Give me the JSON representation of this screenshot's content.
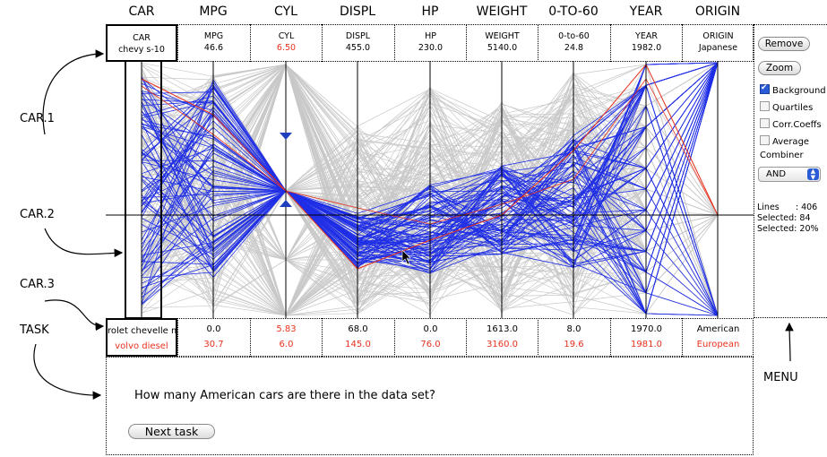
{
  "axes": [
    {
      "header": "CAR",
      "top_name": "CAR",
      "top_value": "chevy s-10",
      "bottom_min": "rolet chevelle m",
      "bottom_max": "volvo diesel"
    },
    {
      "header": "MPG",
      "top_name": "MPG",
      "top_value": "46.6",
      "bottom_min": "0.0",
      "bottom_max": "30.7"
    },
    {
      "header": "CYL",
      "top_name": "CYL",
      "top_value": "6.50",
      "bottom_min": "5.83",
      "bottom_max": "6.0"
    },
    {
      "header": "DISPL",
      "top_name": "DISPL",
      "top_value": "455.0",
      "bottom_min": "68.0",
      "bottom_max": "145.0"
    },
    {
      "header": "HP",
      "top_name": "HP",
      "top_value": "230.0",
      "bottom_min": "0.0",
      "bottom_max": "76.0"
    },
    {
      "header": "WEIGHT",
      "top_name": "WEIGHT",
      "top_value": "5140.0",
      "bottom_min": "1613.0",
      "bottom_max": "3160.0"
    },
    {
      "header": "0-TO-60",
      "top_name": "0-to-60",
      "top_value": "24.8",
      "bottom_min": "8.0",
      "bottom_max": "19.6"
    },
    {
      "header": "YEAR",
      "top_name": "YEAR",
      "top_value": "1982.0",
      "bottom_min": "1970.0",
      "bottom_max": "1981.0"
    },
    {
      "header": "ORIGIN",
      "top_name": "ORIGIN",
      "top_value": "Japanese",
      "bottom_min": "American",
      "bottom_max": "European"
    }
  ],
  "annotations": {
    "car1": "CAR.1",
    "car2": "CAR.2",
    "car3": "CAR.3",
    "task": "TASK",
    "menu": "MENU"
  },
  "menu": {
    "remove_label": "Remove",
    "zoom_label": "Zoom",
    "checkboxes": [
      {
        "label": "Background",
        "checked": true
      },
      {
        "label": "Quartiles",
        "checked": false
      },
      {
        "label": "Corr.Coeffs",
        "checked": false
      },
      {
        "label": "Average",
        "checked": false
      }
    ],
    "combiner_label": "Combiner",
    "combiner_value": "AND",
    "stats": {
      "lines": "Lines      : 406",
      "selected_count": "Selected: 84",
      "selected_pct": "Selected: 20%"
    }
  },
  "task": {
    "question": "How many American cars are there in the data set?",
    "next_label": "Next task"
  },
  "colors": {
    "background_lines": "#c8c8c8",
    "selected_lines": "#1f2ee6",
    "highlight_lines": "#e8321e",
    "checkbox_accent": "#2a5bd7"
  }
}
